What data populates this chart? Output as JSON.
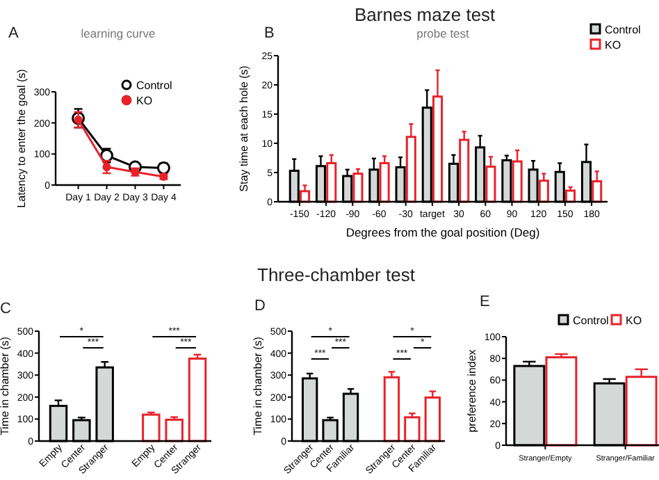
{
  "chart_data": [
    {
      "type": "line",
      "title": "learning curve",
      "ylabel": "Latency to enter the goal (s)",
      "annotations": [
        "A"
      ],
      "categories": [
        "Day 1",
        "Day 2",
        "Day 3",
        "Day 4"
      ],
      "ylim": [
        0,
        300
      ],
      "yticks": [
        0,
        100,
        200,
        300
      ],
      "marker": "circle",
      "legend": "top right",
      "series": [
        {
          "name": "Control",
          "color": "#000000",
          "values": [
            215,
            95,
            58,
            55
          ],
          "errors": [
            30,
            22,
            10,
            15
          ]
        },
        {
          "name": "KO",
          "color": "#e8222a",
          "values": [
            210,
            58,
            42,
            27
          ],
          "errors": [
            25,
            20,
            12,
            8
          ]
        }
      ]
    },
    {
      "type": "bar",
      "title": "probe test",
      "ylabel": "Stay time at each hole (s)",
      "xlabel": "Degrees from the goal position (Deg)",
      "annotations": [
        "Barnes maze test",
        "B"
      ],
      "categories": [
        "-150",
        "-120",
        "-90",
        "-60",
        "-30",
        "target",
        "30",
        "60",
        "90",
        "120",
        "150",
        "180"
      ],
      "ylim": [
        0,
        25
      ],
      "yticks": [
        0,
        5,
        10,
        15,
        20,
        25
      ],
      "legend": "top right",
      "series": [
        {
          "name": "Control",
          "color": "#000000",
          "values": [
            5.3,
            6.1,
            4.4,
            5.5,
            5.9,
            16.1,
            6.5,
            9.3,
            7.1,
            5.5,
            5.1,
            6.8
          ],
          "errors": [
            2,
            1.7,
            1.1,
            1.9,
            1.7,
            3,
            1.5,
            2,
            0.8,
            1.5,
            1.5,
            3
          ]
        },
        {
          "name": "KO",
          "color": "#e8222a",
          "values": [
            1.8,
            6.6,
            4.8,
            6.6,
            11.1,
            18,
            10.6,
            6,
            6.9,
            3.6,
            1.9,
            3.5
          ],
          "errors": [
            1,
            1.4,
            0.8,
            1.2,
            2.2,
            4.5,
            1.4,
            1.7,
            1.9,
            1.2,
            0.6,
            1.7
          ]
        }
      ]
    },
    {
      "type": "bar",
      "ylabel": "Time in chamber (s)",
      "annotations": [
        "C",
        "*",
        "***",
        "***",
        "***"
      ],
      "categories": [
        "Empty",
        "Center",
        "Stranger",
        null,
        "Empty",
        "Center",
        "Stranger"
      ],
      "ylim": [
        0,
        500
      ],
      "yticks": [
        0,
        100,
        200,
        300,
        400,
        500
      ],
      "series": [
        {
          "color": "#000000",
          "values": [
            160,
            95,
            335,
            null,
            null,
            null,
            null
          ],
          "errors": [
            25,
            12,
            25,
            null,
            null,
            null,
            null
          ]
        },
        {
          "color": "#e8222a",
          "values": [
            null,
            null,
            null,
            null,
            120,
            97,
            375
          ],
          "errors": [
            null,
            null,
            null,
            null,
            10,
            12,
            18
          ]
        }
      ]
    },
    {
      "type": "bar",
      "ylabel": "Time in chamber (s)",
      "annotations": [
        "Three-chamber test",
        "D",
        "*",
        "***",
        "***",
        "*",
        "***",
        "*"
      ],
      "categories": [
        "Stranger",
        "Center",
        "Familiar",
        null,
        "Stranger",
        "Center",
        "Familiar"
      ],
      "ylim": [
        0,
        500
      ],
      "yticks": [
        0,
        100,
        200,
        300,
        400,
        500
      ],
      "series": [
        {
          "color": "#000000",
          "values": [
            285,
            95,
            215,
            null,
            null,
            null,
            null
          ],
          "errors": [
            22,
            12,
            22,
            null,
            null,
            null,
            null
          ]
        },
        {
          "color": "#e8222a",
          "values": [
            null,
            null,
            null,
            null,
            290,
            108,
            198
          ],
          "errors": [
            null,
            null,
            null,
            null,
            25,
            18,
            28
          ]
        }
      ]
    },
    {
      "type": "bar",
      "ylabel": "preference index",
      "annotations": [
        "E"
      ],
      "categories": [
        "Stranger/Empty",
        "Stranger/Familiar"
      ],
      "ylim": [
        0,
        100
      ],
      "yticks": [
        0,
        20,
        40,
        60,
        80,
        100
      ],
      "legend": "top right",
      "series": [
        {
          "name": "Control",
          "color": "#000000",
          "values": [
            73,
            57
          ],
          "errors": [
            4,
            4
          ]
        },
        {
          "name": "KO",
          "color": "#e8222a",
          "values": [
            81,
            63
          ],
          "errors": [
            3,
            7
          ]
        }
      ]
    }
  ]
}
